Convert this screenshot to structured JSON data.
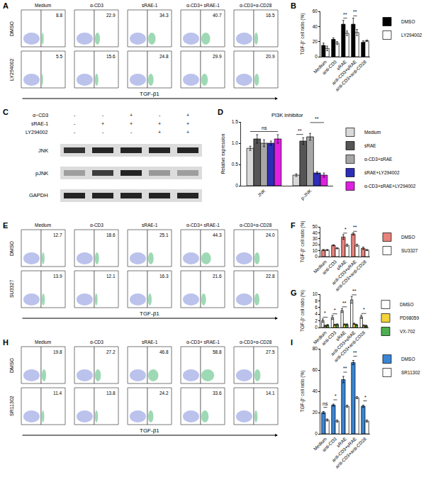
{
  "chart_data": [
    {
      "type": "flow",
      "panel": "A",
      "columns": [
        "Medium",
        "α-CD3",
        "sRAE-1",
        "α-CD3+ sRAE-1",
        "α-CD3+α-CD28"
      ],
      "rows": [
        {
          "name": "DMSO",
          "values": [
            8.8,
            22.9,
            34.3,
            40.7,
            16.5
          ]
        },
        {
          "name": "LY294002",
          "values": [
            5.5,
            15.6,
            24.8,
            29.9,
            20.9
          ]
        }
      ],
      "xlabel": "TGF-β1"
    },
    {
      "type": "bar",
      "panel": "B",
      "categories": [
        "Medium",
        "anti-CD3",
        "sRAE",
        "anti-CD3+sRAE",
        "anti-CD3+anti-CD28"
      ],
      "series": [
        {
          "name": "DMSO",
          "color": "#000000",
          "values": [
            15,
            23,
            43,
            43,
            19
          ],
          "errors": [
            3,
            2,
            5,
            8,
            2
          ]
        },
        {
          "name": "LY294002",
          "color": "#ffffff",
          "values": [
            11,
            18,
            31,
            32,
            21
          ],
          "errors": [
            3,
            2,
            3,
            4,
            1
          ]
        }
      ],
      "ylabel": "TGF-β⁺ cell ratio (%)",
      "ylim": [
        0,
        60
      ],
      "yticks": [
        0,
        20,
        40,
        60
      ],
      "legend": "right",
      "annotations": [
        {
          "category": "sRAE",
          "text": "**"
        },
        {
          "category": "anti-CD3+sRAE",
          "text": "**"
        }
      ]
    },
    {
      "type": "blot",
      "panel": "C",
      "conditions": [
        {
          "name": "α−CD3",
          "marks": [
            "-",
            "-",
            "+",
            "-",
            "+"
          ]
        },
        {
          "name": "sRAE-1",
          "marks": [
            "-",
            "+",
            "+",
            "+",
            "+"
          ]
        },
        {
          "name": "LY294002",
          "marks": [
            "-",
            "-",
            "-",
            "+",
            "+"
          ]
        }
      ],
      "rows": [
        {
          "name": "JNK",
          "values": [
            0.9,
            1.0,
            1.0,
            1.0,
            1.0
          ]
        },
        {
          "name": "pJNK",
          "values": [
            0.25,
            1.0,
            1.2,
            0.3,
            0.25
          ]
        },
        {
          "name": "GAPDH",
          "values": [
            1.0,
            1.0,
            1.0,
            1.0,
            1.0
          ]
        }
      ]
    },
    {
      "type": "bar",
      "panel": "D",
      "title": "PI3K inhibitor",
      "categories": [
        "JNK",
        "p-JNK"
      ],
      "series": [
        {
          "name": "Medium",
          "color": "#d9d9d9",
          "values": [
            0.88,
            0.25
          ],
          "errors": [
            0.05,
            0.03
          ]
        },
        {
          "name": "sRAE",
          "color": "#555555",
          "values": [
            1.1,
            1.05
          ],
          "errors": [
            0.1,
            0.08
          ]
        },
        {
          "name": "α-CD3+sRAE",
          "color": "#a6a6a6",
          "values": [
            1.0,
            1.15
          ],
          "errors": [
            0.08,
            0.08
          ]
        },
        {
          "name": "sRAE+LY294002",
          "color": "#2d2db8",
          "values": [
            1.0,
            0.3
          ],
          "errors": [
            0.05,
            0.03
          ]
        },
        {
          "name": "α-CD3+sRAE+LY294002",
          "color": "#e020e0",
          "values": [
            1.1,
            0.25
          ],
          "errors": [
            0.1,
            0.05
          ]
        }
      ],
      "ylabel": "Relative expression",
      "ylim": [
        0,
        1.5
      ],
      "yticks": [
        0,
        0.5,
        {
          "value": 1,
          "label": "1.0"
        },
        1.5
      ],
      "legend": "right",
      "annotations": [
        {
          "category": "JNK",
          "text": "ns"
        },
        {
          "category": "p-JNK",
          "text": "**",
          "between": [
            "Medium",
            "sRAE"
          ]
        },
        {
          "category": "p-JNK",
          "text": "**",
          "between": [
            "α-CD3+sRAE",
            "α-CD3+sRAE+LY294002"
          ]
        }
      ]
    },
    {
      "type": "flow",
      "panel": "E",
      "columns": [
        "Medium",
        "α-CD3",
        "sRAE-1",
        "α-CD3+ sRAE-1",
        "α-CD3+α-CD28"
      ],
      "rows": [
        {
          "name": "DMSO",
          "values": [
            12.7,
            18.6,
            25.1,
            44.3,
            24.0
          ],
          "value_labels": [
            "12.7",
            "18.6",
            "25.1",
            "44.3",
            "24.0"
          ]
        },
        {
          "name": "SU3327",
          "values": [
            13.9,
            12.1,
            16.3,
            21.6,
            22.8
          ]
        }
      ],
      "xlabel": "TGF-β1"
    },
    {
      "type": "bar",
      "panel": "F",
      "categories": [
        "Medium",
        "anti-CD3",
        "sRAE",
        "anti-CD3+sRAE",
        "anti-CD3+anti-CD28"
      ],
      "series": [
        {
          "name": "DMSO",
          "color": "#e8837c",
          "values": [
            11,
            19,
            33,
            38,
            14
          ],
          "errors": [
            1,
            1,
            4,
            2,
            2
          ]
        },
        {
          "name": "SU3327",
          "color": "#ffffff",
          "values": [
            11,
            14,
            19,
            19,
            11
          ],
          "errors": [
            1,
            1,
            2,
            2,
            1
          ]
        }
      ],
      "ylabel": "TGF-β⁺ cell ratio (%)",
      "ylim": [
        0,
        50
      ],
      "yticks": [
        0,
        10,
        20,
        30,
        40,
        50
      ],
      "legend": "right",
      "annotations": [
        {
          "category": "sRAE",
          "text": "*"
        },
        {
          "category": "anti-CD3+sRAE",
          "text": "**"
        }
      ]
    },
    {
      "type": "bar",
      "panel": "G",
      "categories": [
        "Medium",
        "anti-CD3",
        "sRAE",
        "anti-CD3+sRAE",
        "anti-CD3+anti-CD28"
      ],
      "series": [
        {
          "name": "DMSO",
          "color": "#ffffff",
          "values": [
            2.1,
            3.0,
            5.1,
            8.3,
            3.2
          ],
          "errors": [
            0.5,
            0.6,
            0.6,
            1.0,
            0.5
          ]
        },
        {
          "name": "PD98059",
          "color": "#f5d33b",
          "values": [
            0.5,
            0.8,
            0.9,
            1.1,
            0.6
          ],
          "errors": [
            0.2,
            0.2,
            0.2,
            0.2,
            0.2
          ]
        },
        {
          "name": "VX-702",
          "color": "#4caf50",
          "values": [
            0.7,
            0.9,
            0.9,
            0.8,
            0.5
          ],
          "errors": [
            0.2,
            0.2,
            0.2,
            0.2,
            0.2
          ]
        }
      ],
      "ylabel": "TGF-β⁺ cell ratio (%)",
      "ylim": [
        0,
        10
      ],
      "yticks": [
        0,
        2,
        4,
        6,
        8,
        10
      ],
      "legend": "right",
      "annotations": [
        {
          "category": "Medium",
          "text": "*"
        },
        {
          "category": "anti-CD3",
          "text": "*"
        },
        {
          "category": "sRAE",
          "text": "**"
        },
        {
          "category": "anti-CD3+sRAE",
          "text": "**"
        },
        {
          "category": "anti-CD3+anti-CD28",
          "text": "*"
        }
      ]
    },
    {
      "type": "flow",
      "panel": "H",
      "columns": [
        "Medium",
        "α-CD3",
        "sRAE-1",
        "α-CD3+ sRAE-1",
        "α-CD3+α-CD28"
      ],
      "rows": [
        {
          "name": "DMSO",
          "values": [
            19.8,
            27.2,
            46.8,
            58.8,
            27.5
          ]
        },
        {
          "name": "SR11302",
          "values": [
            11.4,
            13.8,
            24.2,
            33.6,
            14.1
          ]
        }
      ],
      "xlabel": "TGF-β1"
    },
    {
      "type": "bar",
      "panel": "I",
      "categories": [
        "Medium",
        "anti-CD3",
        "sRAE",
        "anti-CD3+sRAE",
        "anti-CD3+anti-CD28"
      ],
      "series": [
        {
          "name": "DMSO",
          "color": "#3a86d4",
          "values": [
            20,
            27,
            51,
            67,
            26
          ],
          "errors": [
            1,
            1,
            3,
            2,
            1
          ]
        },
        {
          "name": "SR11302",
          "color": "#ffffff",
          "values": [
            13,
            12,
            26,
            34,
            12
          ],
          "errors": [
            1,
            1,
            1,
            1,
            1
          ]
        }
      ],
      "ylabel": "TGF-β⁺ cell ratio (%)",
      "ylim": [
        0,
        80
      ],
      "yticks": [
        0,
        20,
        40,
        60,
        80
      ],
      "legend": "right",
      "annotations": [
        {
          "category": "Medium",
          "text": "ns"
        },
        {
          "category": "anti-CD3",
          "text": "*"
        },
        {
          "category": "sRAE",
          "text": "**"
        },
        {
          "category": "anti-CD3+sRAE",
          "text": "**"
        },
        {
          "category": "anti-CD3+anti-CD28",
          "text": "*"
        }
      ]
    }
  ]
}
